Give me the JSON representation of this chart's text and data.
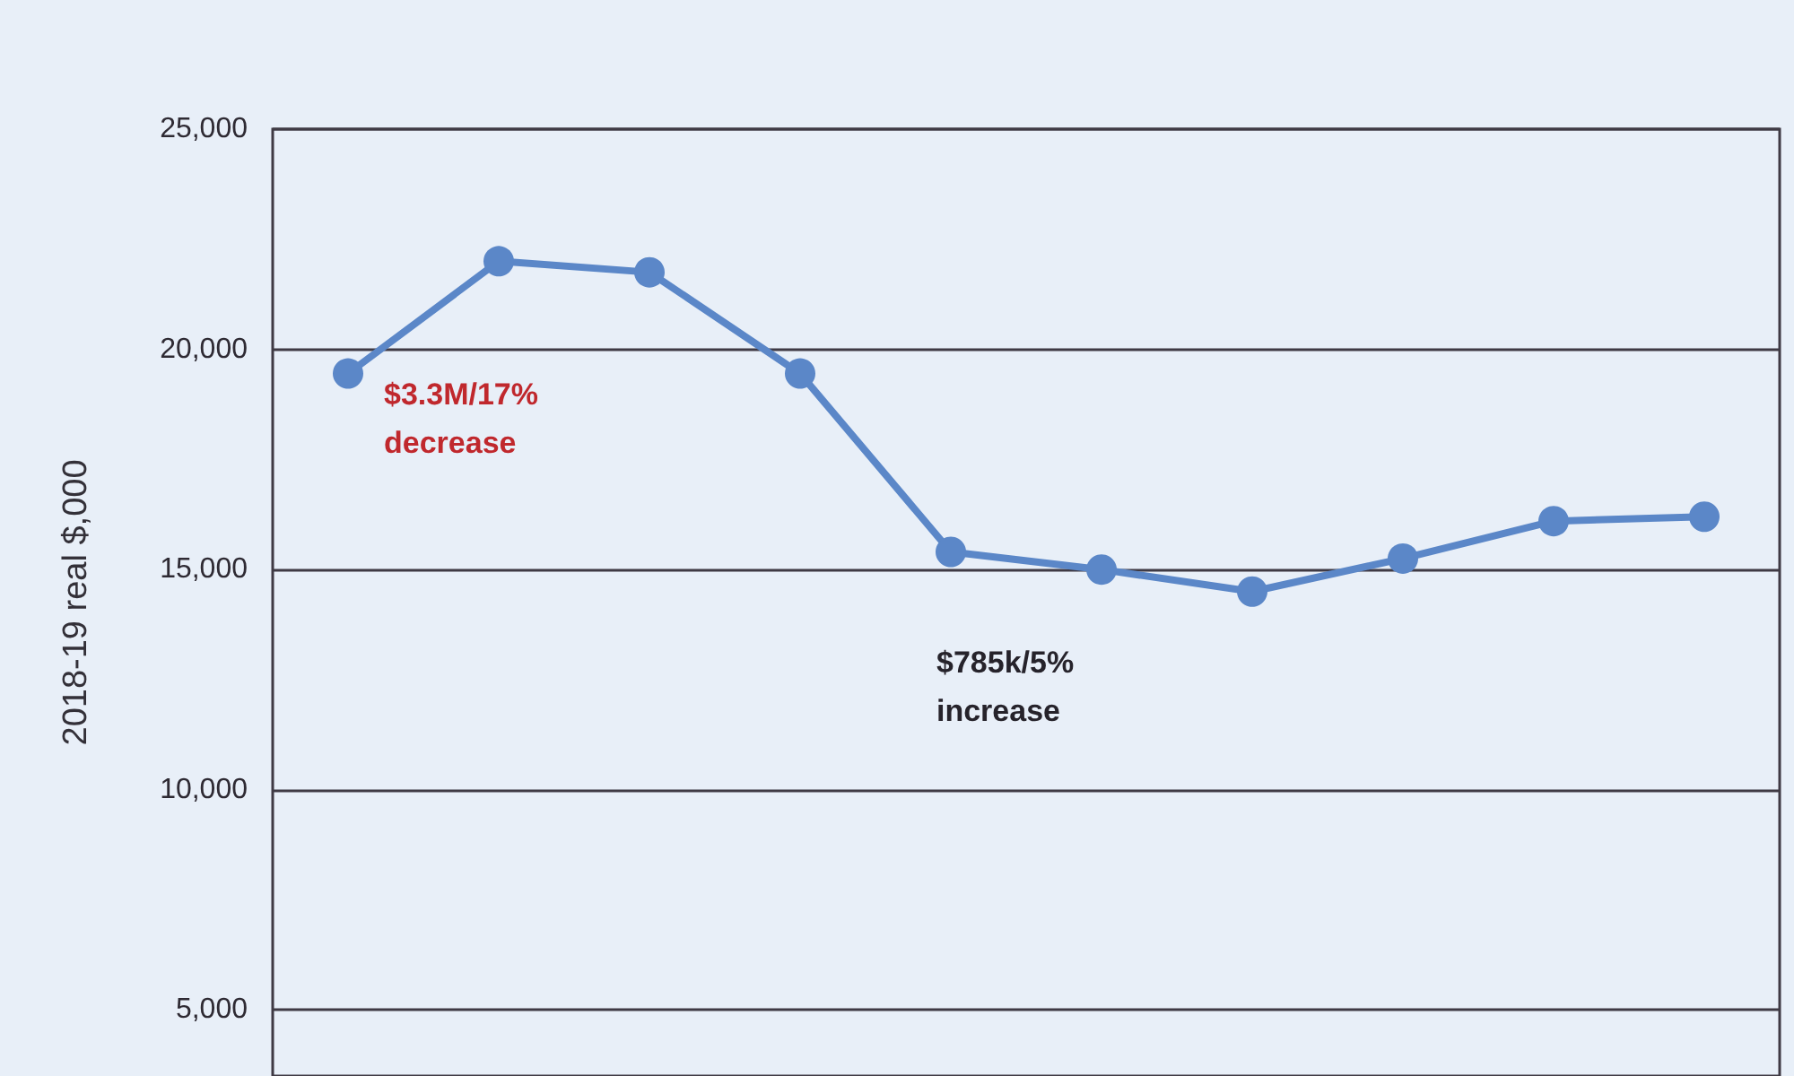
{
  "chart_data": {
    "type": "line",
    "ylabel": "2018-19 real $,000",
    "categories": [
      null,
      null,
      null,
      null,
      null,
      null,
      null,
      null,
      null,
      null
    ],
    "series": [
      {
        "color": "#5b87c8",
        "values": [
          19450,
          22000,
          21750,
          19450,
          15400,
          15000,
          14500,
          15250,
          16100,
          16200
        ]
      }
    ],
    "ylim": [
      3500,
      25000
    ],
    "yticks": [
      {
        "value": 5000,
        "label": "5,000"
      },
      {
        "value": 10000,
        "label": "10,000"
      },
      {
        "value": 15000,
        "label": "15,000"
      },
      {
        "value": 20000,
        "label": "20,000"
      },
      {
        "value": 25000,
        "label": "25,000"
      }
    ],
    "grid": "y",
    "marker": "circle",
    "line_style": "solid",
    "tick_labels": "y",
    "annotations": [
      "$3.3M/17%\ndecrease",
      "$785k/5%\nincrease"
    ]
  }
}
